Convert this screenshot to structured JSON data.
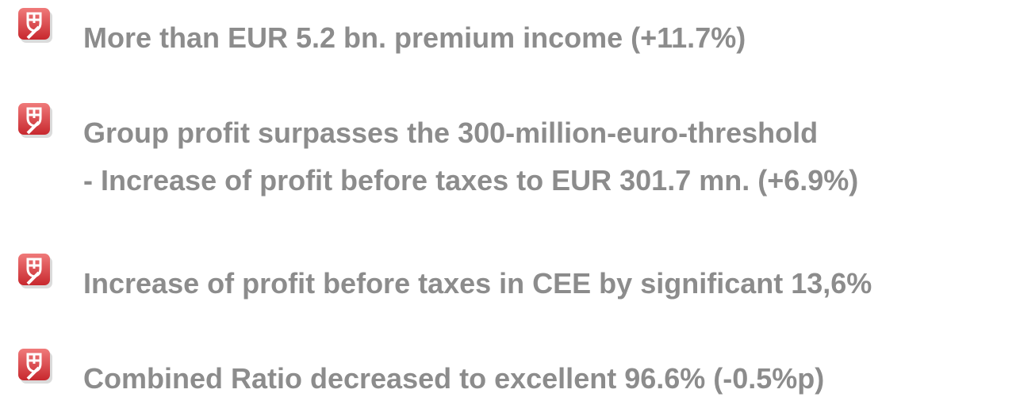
{
  "items": [
    {
      "lines": [
        "More than EUR 5.2 bn. premium income (+11.7%)"
      ]
    },
    {
      "lines": [
        "Group profit surpasses the 300-million-euro-threshold",
        "- Increase of profit before taxes to EUR 301.7 mn. (+6.9%)"
      ]
    },
    {
      "lines": [
        "Increase of profit before taxes in CEE by significant 13,6%"
      ]
    },
    {
      "lines": [
        "Combined Ratio decreased to excellent 96.6% (-0.5%p)"
      ]
    }
  ]
}
